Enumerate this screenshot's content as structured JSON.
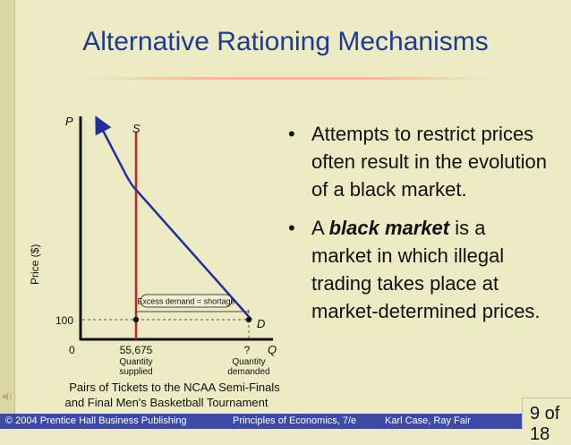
{
  "slide": {
    "title": "Alternative Rationing Mechanisms",
    "slide_number": "9 of 18"
  },
  "graph": {
    "y_axis_var": "P",
    "x_axis_var": "Q",
    "y_axis_label": "Price ($)",
    "supply_label": "S",
    "demand_label": "D",
    "price_tick": "100",
    "origin_label": "0",
    "qty_supplied_value": "55,675",
    "qty_supplied_label_1": "Quantity",
    "qty_supplied_label_2": "supplied",
    "qty_demanded_value": "?",
    "qty_demanded_label_1": "Quantity",
    "qty_demanded_label_2": "demanded",
    "shortage_label": "Excess demand = shortage",
    "x_caption_1": "Pairs of Tickets to the NCAA Semi-Finals",
    "x_caption_2": "and Final Men's Basketball Tournament",
    "colors": {
      "supply": "#cc2222",
      "demand": "#1f2fa0"
    }
  },
  "bullets": [
    {
      "text_1": "Attempts to restrict prices often result in the evolution of a black market."
    },
    {
      "text_pre": "A ",
      "text_em": "black market",
      "text_post": " is a market in which illegal trading takes place at market-determined prices."
    }
  ],
  "footer": {
    "copyright": "© 2004 Prentice Hall Business Publishing",
    "book": "Principles of Economics, 7/e",
    "authors": "Karl Case, Ray Fair"
  },
  "icons": {
    "sound": "speaker-icon"
  }
}
